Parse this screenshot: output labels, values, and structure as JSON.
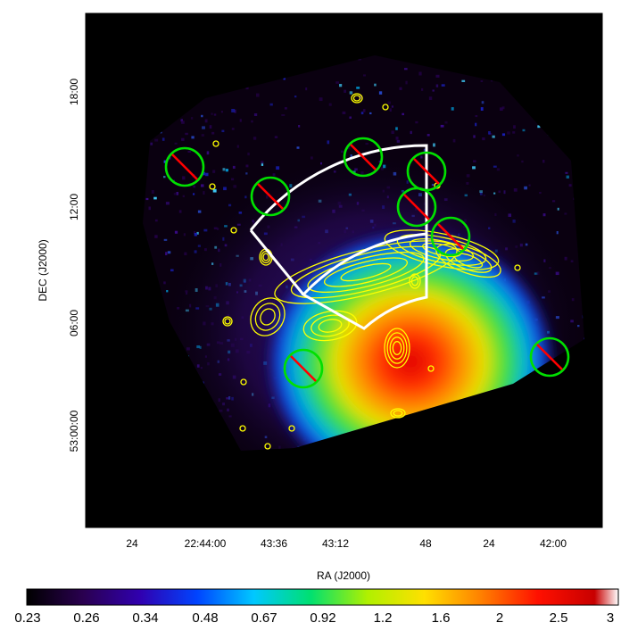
{
  "figure": {
    "x_axis_title": "RA (J2000)",
    "y_axis_title": "DEC (J2000)",
    "x_tick_labels": [
      "24",
      "22:44:00",
      "43:36",
      "43:12",
      "48",
      "24",
      "42:00"
    ],
    "y_tick_labels": [
      "18:00",
      "12:00",
      "06:00",
      "53:00:00"
    ],
    "colorbar_labels": [
      "0.23",
      "0.26",
      "0.34",
      "0.48",
      "0.67",
      "0.92",
      "1.2",
      "1.6",
      "2",
      "2.5",
      "3"
    ],
    "colormap_stops": [
      "#000000",
      "#2a0050",
      "#3000b0",
      "#0044ff",
      "#00c8ff",
      "#00e070",
      "#b0f000",
      "#ffe000",
      "#ff8000",
      "#ff1000",
      "#c80000",
      "#ffffff"
    ],
    "region_circle_color": "#00e000",
    "region_strike_color": "#ff0000",
    "contour_color": "#ffff00",
    "sector_outline_color": "#ffffff"
  }
}
